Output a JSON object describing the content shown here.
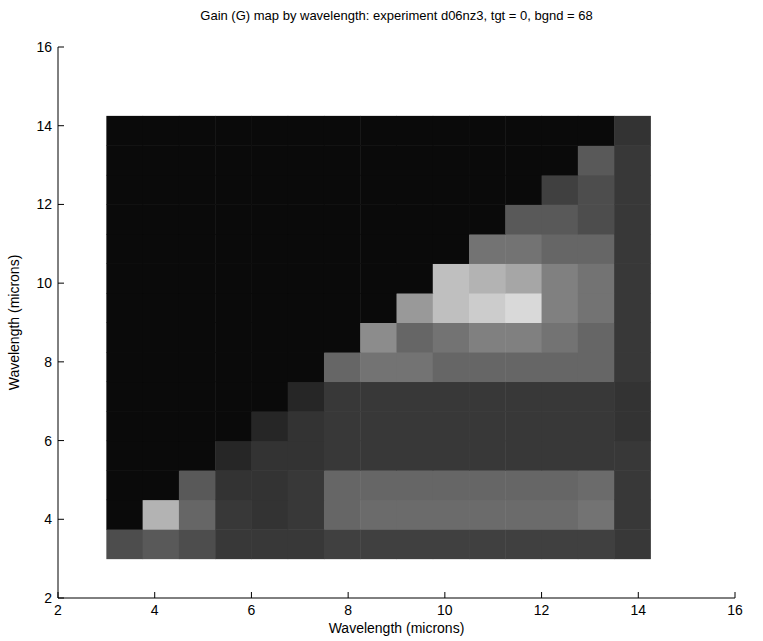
{
  "chart_data": {
    "type": "heatmap",
    "title": "Gain (G) map by wavelength: experiment d06nz3, tgt = 0, bgnd = 68",
    "x_label": "Wavelength (microns)",
    "y_label": "Wavelength (microns)",
    "x": [
      3.375,
      4.125,
      4.875,
      5.625,
      6.375,
      7.125,
      7.875,
      8.625,
      9.375,
      10.125,
      10.875,
      11.625,
      12.375,
      13.125,
      13.875
    ],
    "y": [
      3.375,
      4.125,
      4.875,
      5.625,
      6.375,
      7.125,
      7.875,
      8.625,
      9.375,
      10.125,
      10.875,
      11.625,
      12.375,
      13.125,
      13.875
    ],
    "cells": [
      [
        0.3,
        0.35,
        0.3,
        0.22,
        0.22,
        0.22,
        0.25,
        0.25,
        0.25,
        0.25,
        0.25,
        0.25,
        0.25,
        0.25,
        0.22
      ],
      [
        0.04,
        0.7,
        0.4,
        0.22,
        0.2,
        0.22,
        0.4,
        0.42,
        0.42,
        0.42,
        0.42,
        0.42,
        0.42,
        0.45,
        0.22
      ],
      [
        0.04,
        0.04,
        0.35,
        0.2,
        0.2,
        0.22,
        0.4,
        0.4,
        0.4,
        0.4,
        0.4,
        0.4,
        0.4,
        0.42,
        0.22
      ],
      [
        0.04,
        0.04,
        0.04,
        0.15,
        0.2,
        0.2,
        0.22,
        0.22,
        0.22,
        0.22,
        0.22,
        0.22,
        0.22,
        0.22,
        0.22
      ],
      [
        0.04,
        0.04,
        0.04,
        0.04,
        0.15,
        0.2,
        0.22,
        0.22,
        0.22,
        0.22,
        0.22,
        0.22,
        0.22,
        0.22,
        0.2
      ],
      [
        0.04,
        0.04,
        0.04,
        0.04,
        0.04,
        0.15,
        0.22,
        0.22,
        0.22,
        0.22,
        0.22,
        0.22,
        0.22,
        0.22,
        0.2
      ],
      [
        0.04,
        0.04,
        0.04,
        0.04,
        0.04,
        0.04,
        0.4,
        0.45,
        0.45,
        0.4,
        0.4,
        0.4,
        0.4,
        0.4,
        0.22
      ],
      [
        0.04,
        0.04,
        0.04,
        0.04,
        0.04,
        0.04,
        0.04,
        0.55,
        0.4,
        0.45,
        0.5,
        0.5,
        0.45,
        0.4,
        0.22
      ],
      [
        0.04,
        0.04,
        0.04,
        0.04,
        0.04,
        0.04,
        0.04,
        0.04,
        0.6,
        0.75,
        0.8,
        0.85,
        0.5,
        0.45,
        0.22
      ],
      [
        0.04,
        0.04,
        0.04,
        0.04,
        0.04,
        0.04,
        0.04,
        0.04,
        0.04,
        0.75,
        0.7,
        0.65,
        0.5,
        0.45,
        0.22
      ],
      [
        0.04,
        0.04,
        0.04,
        0.04,
        0.04,
        0.04,
        0.04,
        0.04,
        0.04,
        0.04,
        0.45,
        0.45,
        0.4,
        0.4,
        0.22
      ],
      [
        0.04,
        0.04,
        0.04,
        0.04,
        0.04,
        0.04,
        0.04,
        0.04,
        0.04,
        0.04,
        0.04,
        0.35,
        0.35,
        0.3,
        0.22
      ],
      [
        0.04,
        0.04,
        0.04,
        0.04,
        0.04,
        0.04,
        0.04,
        0.04,
        0.04,
        0.04,
        0.04,
        0.04,
        0.25,
        0.3,
        0.22
      ],
      [
        0.04,
        0.04,
        0.04,
        0.04,
        0.04,
        0.04,
        0.04,
        0.04,
        0.04,
        0.04,
        0.04,
        0.04,
        0.04,
        0.35,
        0.22
      ],
      [
        0.04,
        0.04,
        0.04,
        0.04,
        0.04,
        0.04,
        0.04,
        0.04,
        0.04,
        0.04,
        0.04,
        0.04,
        0.04,
        0.04,
        0.2
      ]
    ],
    "zlim": [
      0,
      1
    ],
    "xlim": [
      2,
      16
    ],
    "ylim": [
      2,
      16
    ],
    "xticks": [
      2,
      4,
      6,
      8,
      10,
      12,
      14,
      16
    ],
    "yticks": [
      2,
      4,
      6,
      8,
      10,
      12,
      14,
      16
    ],
    "grid": false
  }
}
